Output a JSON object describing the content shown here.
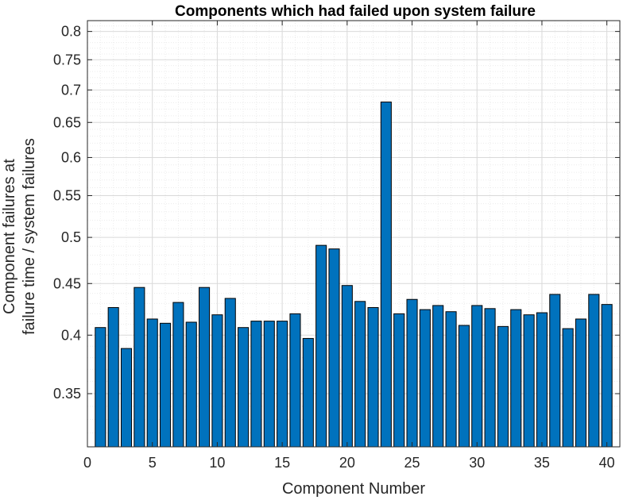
{
  "chart_data": {
    "type": "bar",
    "title": "Components which had failed upon system failure",
    "xlabel": "Component Number",
    "ylabel_lines": [
      "Component failures at",
      "failure time / system failures"
    ],
    "yscale": "log",
    "xlim": [
      0,
      41
    ],
    "ylim": [
      0.31,
      0.82
    ],
    "grid": true,
    "minor_grid": true,
    "x_ticks": [
      0,
      5,
      10,
      15,
      20,
      25,
      30,
      35,
      40
    ],
    "x_tick_labels": [
      "0",
      "5",
      "10",
      "15",
      "20",
      "25",
      "30",
      "35",
      "40"
    ],
    "y_ticks": [
      0.35,
      0.4,
      0.45,
      0.5,
      0.55,
      0.6,
      0.65,
      0.7,
      0.75,
      0.8
    ],
    "y_tick_labels": [
      "0.35",
      "0.4",
      "0.45",
      "0.5",
      "0.55",
      "0.6",
      "0.65",
      "0.7",
      "0.75",
      "0.8"
    ],
    "bar_color": "#0072BD",
    "categories": [
      1,
      2,
      3,
      4,
      5,
      6,
      7,
      8,
      9,
      10,
      11,
      12,
      13,
      14,
      15,
      16,
      17,
      18,
      19,
      20,
      21,
      22,
      23,
      24,
      25,
      26,
      27,
      28,
      29,
      30,
      31,
      32,
      33,
      34,
      35,
      36,
      37,
      38,
      39,
      40
    ],
    "values": [
      0.407,
      0.426,
      0.388,
      0.446,
      0.415,
      0.411,
      0.431,
      0.412,
      0.446,
      0.419,
      0.435,
      0.407,
      0.413,
      0.413,
      0.413,
      0.42,
      0.397,
      0.491,
      0.487,
      0.448,
      0.432,
      0.426,
      0.681,
      0.42,
      0.434,
      0.424,
      0.428,
      0.422,
      0.409,
      0.428,
      0.425,
      0.408,
      0.424,
      0.419,
      0.421,
      0.439,
      0.406,
      0.415,
      0.439,
      0.429
    ]
  }
}
